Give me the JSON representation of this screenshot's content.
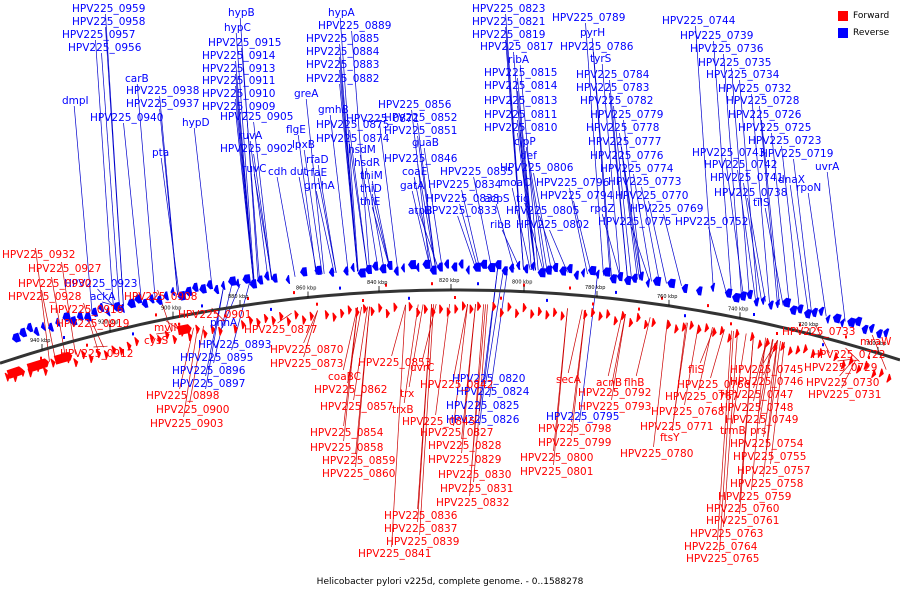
{
  "caption": "Helicobacter pylori v225d, complete genome. - 0..1588278",
  "legend": [
    {
      "label": "Forward",
      "color": "#ff0000"
    },
    {
      "label": "Reverse",
      "color": "#0000ff"
    }
  ],
  "colors": {
    "forward": "#ff0000",
    "reverse": "#0000ff",
    "line_forward": "#cc0000",
    "line_reverse": "#0000cc",
    "backbone": "#333333"
  },
  "ticks": [
    "940 kbp",
    "920 kbp",
    "900 kbp",
    "880 kbp",
    "860 kbp",
    "840 kbp",
    "820 kbp",
    "800 kbp",
    "780 kbp",
    "760 kbp",
    "740 kbp",
    "720 kbp",
    "700 kbp"
  ],
  "reverse_labels": [
    "HPV225_0959",
    "HPV225_0958",
    "HPV225_0957",
    "HPV225_0956",
    "carB",
    "HPV225_0938",
    "HPV225_0937",
    "dmpI",
    "HPV225_0940",
    "hypB",
    "hypC",
    "HPV225_0915",
    "HPV225_0914",
    "HPV225_0913",
    "HPV225_0911",
    "HPV225_0910",
    "HPV225_0909",
    "hypD",
    "HPV225_0905",
    "ruvA",
    "HPV225_0902",
    "pta",
    "ruvC",
    "hypA",
    "HPV225_0889",
    "HPV225_0885",
    "HPV225_0884",
    "HPV225_0883",
    "HPV225_0882",
    "greA",
    "gmhB",
    "HPV225_0875",
    "HPV225_0874",
    "flgE",
    "lpxB",
    "rfaD",
    "rfaE",
    "gmhA",
    "dut",
    "cdh",
    "HPV225_0871",
    "hsdM",
    "hsdR",
    "thiM",
    "thiD",
    "thiE",
    "HPV225_0856",
    "HPV225_0852",
    "HPV225_0851",
    "guaB",
    "HPV225_0846",
    "coaE",
    "gatA",
    "HPV225_0838",
    "atpB",
    "HPV225_0835",
    "HPV225_0834",
    "HPV225_0833",
    "ribB",
    "HPV225_0823",
    "HPV225_0821",
    "HPV225_0819",
    "HPV225_0817",
    "ribA",
    "HPV225_0815",
    "HPV225_0814",
    "HPV225_0813",
    "HPV225_0811",
    "HPV225_0810",
    "clpP",
    "def",
    "HPV225_0806",
    "moaC",
    "acpS",
    "tig",
    "HPV225_0805",
    "HPV225_0802",
    "HPV225_0789",
    "pyrH",
    "HPV225_0786",
    "tyrS",
    "HPV225_0784",
    "HPV225_0783",
    "HPV225_0782",
    "HPV225_0779",
    "HPV225_0778",
    "HPV225_0777",
    "HPV225_0776",
    "HPV225_0774",
    "HPV225_0773",
    "HPV225_0796",
    "HPV225_0794",
    "HPV225_0770",
    "rpoZ",
    "HPV225_0769",
    "HPV225_0775",
    "HPV225_0752",
    "HPV225_0744",
    "HPV225_0739",
    "HPV225_0736",
    "HPV225_0735",
    "HPV225_0734",
    "HPV225_0732",
    "HPV225_0728",
    "HPV225_0726",
    "HPV225_0725",
    "HPV225_0723",
    "HPV225_0719",
    "HPV225_0743",
    "HPV225_0742",
    "HPV225_0741",
    "dnaX",
    "rpoN",
    "HPV225_0738",
    "tilS",
    "uvrA",
    "HPV225_0923",
    "ackA",
    "phnA",
    "HPV225_0893",
    "HPV225_0895",
    "HPV225_0896",
    "HPV225_0897",
    "HPV225_0820",
    "HPV225_0824",
    "HPV225_0825",
    "HPV225_0826",
    "HPV225_0795"
  ],
  "forward_labels": [
    "HPV225_0932",
    "HPV225_0927",
    "HPV225_0930",
    "HPV225_0928",
    "HPV225_0916",
    "HPV225_0919",
    "HPV225_0912",
    "HPV225_0908",
    "HPV225_0901",
    "mviN",
    "cysS",
    "HPV225_0898",
    "HPV225_0900",
    "HPV225_0903",
    "HPV225_0877",
    "HPV225_0870",
    "HPV225_0873",
    "HPV225_0853",
    "coaBC",
    "HPV225_0862",
    "HPV225_0857",
    "HPV225_0854",
    "HPV225_0858",
    "HPV225_0859",
    "HPV225_0860",
    "uvrC",
    "HPV225_0842",
    "trx",
    "trxB",
    "HPV225_0845",
    "HPV225_0827",
    "HPV225_0828",
    "HPV225_0829",
    "HPV225_0830",
    "HPV225_0831",
    "HPV225_0832",
    "HPV225_0836",
    "HPV225_0837",
    "HPV225_0839",
    "HPV225_0841",
    "secA",
    "HPV225_0792",
    "HPV225_0793",
    "HPV225_0798",
    "HPV225_0799",
    "HPV225_0800",
    "HPV225_0801",
    "acnB",
    "flhB",
    "HPV225_0780",
    "ftsY",
    "fliS",
    "HPV225_0766",
    "HPV225_0767",
    "HPV225_0768",
    "HPV225_0771",
    "trmB",
    "prs",
    "HPV225_0754",
    "HPV225_0755",
    "HPV225_0757",
    "HPV225_0758",
    "HPV225_0759",
    "HPV225_0760",
    "HPV225_0761",
    "HPV225_0763",
    "HPV225_0764",
    "HPV225_0765",
    "HPV225_0745",
    "HPV225_0746",
    "HPV225_0747",
    "HPV225_0748",
    "HPV225_0749",
    "HPV225_0733",
    "mraW",
    "HPV225_0722",
    "HPV225_0729",
    "HPV225_0730",
    "HPV225_0731"
  ]
}
